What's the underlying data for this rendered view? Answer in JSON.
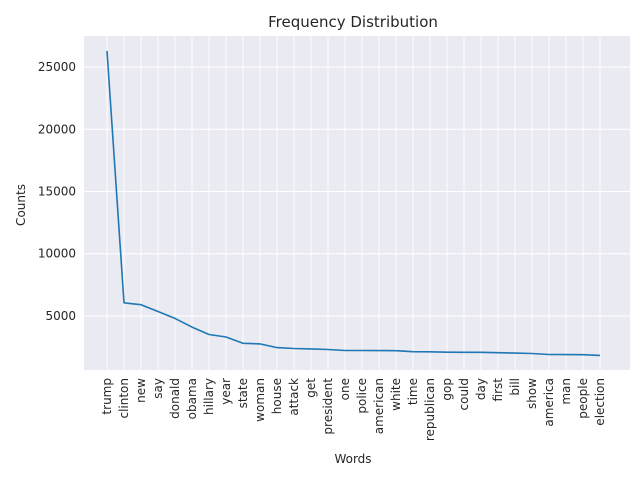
{
  "chart_data": {
    "type": "line",
    "title": "Frequency Distribution",
    "xlabel": "Words",
    "ylabel": "Counts",
    "categories": [
      "trump",
      "clinton",
      "new",
      "say",
      "donald",
      "obama",
      "hillary",
      "year",
      "state",
      "woman",
      "house",
      "attack",
      "get",
      "president",
      "one",
      "police",
      "american",
      "white",
      "time",
      "republican",
      "gop",
      "could",
      "day",
      "first",
      "bill",
      "show",
      "america",
      "man",
      "people",
      "election"
    ],
    "values": [
      26300,
      6050,
      5900,
      5350,
      4800,
      4100,
      3500,
      3300,
      2800,
      2750,
      2450,
      2380,
      2350,
      2300,
      2220,
      2220,
      2210,
      2200,
      2120,
      2110,
      2080,
      2070,
      2070,
      2040,
      2010,
      1980,
      1900,
      1890,
      1880,
      1820
    ],
    "yticks": [
      5000,
      10000,
      15000,
      20000,
      25000
    ],
    "ytick_labels": [
      "5000",
      "10000",
      "15000",
      "20000",
      "25000"
    ],
    "ylim": [
      650,
      27500
    ],
    "grid": true,
    "line_color": "#1f77b4",
    "background_color": "#eaeaf2"
  }
}
